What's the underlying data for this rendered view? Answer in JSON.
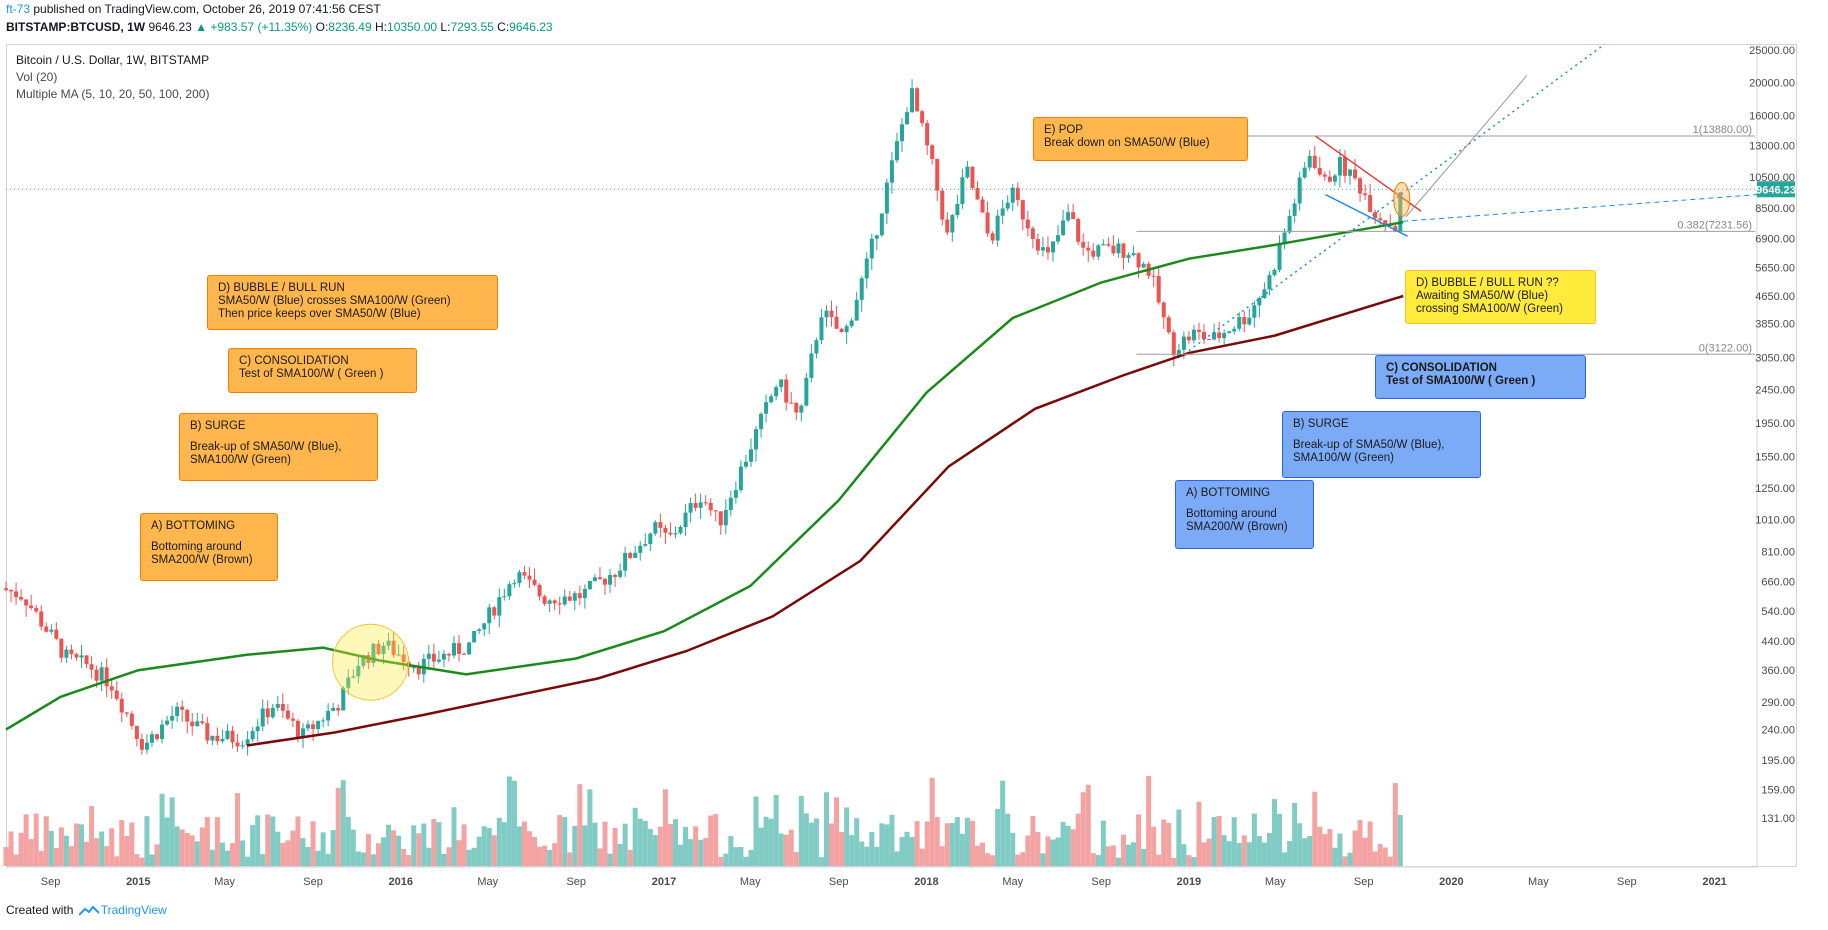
{
  "header": {
    "author": "ft-73",
    "published_text": " published on TradingView.com, October 26, 2019 07:41:56 CEST",
    "symbol": "BITSTAMP:BTCUSD, 1W",
    "price": "9646.23",
    "change": "▲ +983.57 (+11.35%)",
    "o_label": "O:",
    "o_value": "8236.49",
    "h_label": "H:",
    "h_value": "10350.00",
    "l_label": "L:",
    "l_value": "7293.55",
    "c_label": "C:",
    "c_value": "9646.23"
  },
  "legend": {
    "title": "Bitcoin / U.S. Dollar, 1W, BITSTAMP",
    "vol": "Vol (20)",
    "ma": "Multiple MA (5, 10, 20, 50, 100, 200)"
  },
  "footer": {
    "created_with": "Created with",
    "brand": "TradingView"
  },
  "colors": {
    "up": "#26a69a",
    "down": "#ef5350",
    "vol_up": "#80cbc4",
    "vol_down": "#f4a3a3",
    "sma100": "#1b8a1b",
    "sma200": "#7a0a0a",
    "fib": "#9e9e9e",
    "price_label_bg": "#26a69a",
    "wedge": "#e53935",
    "trend_blue": "#1e88e5"
  },
  "annotations": [
    {
      "id": "a-bottoming",
      "color": "orange",
      "title": "A) BOTTOMING",
      "body": "Bottoming around\nSMA200/W (Brown)"
    },
    {
      "id": "b-surge",
      "color": "orange",
      "title": "B) SURGE",
      "body": "Break-up of SMA50/W (Blue),\nSMA100/W (Green)"
    },
    {
      "id": "c-consolidation",
      "color": "orange",
      "title": "  C) CONSOLIDATION",
      "body": " Test of SMA100/W ( Green )"
    },
    {
      "id": "d-bubble",
      "color": "orange",
      "title": "D) BUBBLE / BULL RUN",
      "body": "SMA50/W (Blue) crosses SMA100/W (Green)\nThen price keeps over SMA50/W (Blue)"
    },
    {
      "id": "e-pop",
      "color": "orange",
      "title": "E) POP",
      "body": "Break down on SMA50/W (Blue)"
    },
    {
      "id": "a2-bottoming",
      "color": "blue",
      "title": "A) BOTTOMING",
      "body": "Bottoming around\nSMA200/W (Brown)"
    },
    {
      "id": "b2-surge",
      "color": "blue",
      "title": "B) SURGE",
      "body": "Break-up of SMA50/W (Blue),\nSMA100/W (Green)"
    },
    {
      "id": "c2-consolidation",
      "color": "blue",
      "title": "  C) CONSOLIDATION",
      "body": "Test of SMA100/W ( Green )"
    },
    {
      "id": "d2-bubble",
      "color": "yellow",
      "title": "D) BUBBLE / BULL RUN ??",
      "body": "Awaiting SMA50/W (Blue)\ncrossing SMA100/W (Green)"
    }
  ],
  "chart_data": {
    "type": "candlestick",
    "title": "Bitcoin / U.S. Dollar, 1W, BITSTAMP",
    "symbol": "BITSTAMP:BTCUSD",
    "interval": "1W",
    "y_scale": "log",
    "ylim": [
      110,
      25000
    ],
    "xlim": [
      "2014-07-01",
      "2021-03-01"
    ],
    "y_ticks": [
      25000,
      20000,
      16000,
      13000,
      10500,
      8500,
      6900,
      5650,
      4650,
      3850,
      3050,
      2450,
      1950,
      1550,
      1250,
      1010,
      810,
      660,
      540,
      440,
      360,
      290,
      240,
      195,
      159,
      131
    ],
    "y_tick_labels": [
      "25000.00",
      "20000.00",
      "16000.00",
      "13000.00",
      "10500.00",
      "8500.00",
      "6900.00",
      "5650.00",
      "4650.00",
      "3850.00",
      "3050.00",
      "2450.00",
      "1950.00",
      "1550.00",
      "1250.00",
      "1010.00",
      "810.00",
      "660.00",
      "540.00",
      "440.00",
      "360.00",
      "290.00",
      "240.00",
      "195.00",
      "159.00",
      "131.00"
    ],
    "x_ticks": [
      {
        "date": "2014-09-01",
        "label": "Sep"
      },
      {
        "date": "2015-01-01",
        "label": "2015"
      },
      {
        "date": "2015-05-01",
        "label": "May"
      },
      {
        "date": "2015-09-01",
        "label": "Sep"
      },
      {
        "date": "2016-01-01",
        "label": "2016"
      },
      {
        "date": "2016-05-01",
        "label": "May"
      },
      {
        "date": "2016-09-01",
        "label": "Sep"
      },
      {
        "date": "2017-01-01",
        "label": "2017"
      },
      {
        "date": "2017-05-01",
        "label": "May"
      },
      {
        "date": "2017-09-01",
        "label": "Sep"
      },
      {
        "date": "2018-01-01",
        "label": "2018"
      },
      {
        "date": "2018-05-01",
        "label": "May"
      },
      {
        "date": "2018-09-01",
        "label": "Sep"
      },
      {
        "date": "2019-01-01",
        "label": "2019"
      },
      {
        "date": "2019-05-01",
        "label": "May"
      },
      {
        "date": "2019-09-01",
        "label": "Sep"
      },
      {
        "date": "2020-01-01",
        "label": "2020"
      },
      {
        "date": "2020-05-01",
        "label": "May"
      },
      {
        "date": "2020-09-01",
        "label": "Sep"
      },
      {
        "date": "2021-01-01",
        "label": "2021"
      }
    ],
    "price_path": [
      {
        "date": "2014-07-01",
        "close": 630
      },
      {
        "date": "2014-08-01",
        "close": 600
      },
      {
        "date": "2014-09-01",
        "close": 480
      },
      {
        "date": "2014-10-01",
        "close": 390
      },
      {
        "date": "2014-11-01",
        "close": 370
      },
      {
        "date": "2014-12-01",
        "close": 330
      },
      {
        "date": "2015-01-15",
        "close": 215
      },
      {
        "date": "2015-03-01",
        "close": 270
      },
      {
        "date": "2015-04-15",
        "close": 230
      },
      {
        "date": "2015-06-01",
        "close": 225
      },
      {
        "date": "2015-07-15",
        "close": 285
      },
      {
        "date": "2015-08-25",
        "close": 230
      },
      {
        "date": "2015-10-15",
        "close": 290
      },
      {
        "date": "2015-11-10",
        "close": 380
      },
      {
        "date": "2015-12-15",
        "close": 430
      },
      {
        "date": "2016-02-01",
        "close": 370
      },
      {
        "date": "2016-04-15",
        "close": 430
      },
      {
        "date": "2016-06-15",
        "close": 700
      },
      {
        "date": "2016-07-25",
        "close": 590
      },
      {
        "date": "2016-09-15",
        "close": 600
      },
      {
        "date": "2016-11-01",
        "close": 710
      },
      {
        "date": "2016-12-25",
        "close": 950
      },
      {
        "date": "2017-01-15",
        "close": 880
      },
      {
        "date": "2017-03-01",
        "close": 1200
      },
      {
        "date": "2017-03-25",
        "close": 980
      },
      {
        "date": "2017-05-15",
        "close": 1800
      },
      {
        "date": "2017-06-15",
        "close": 2600
      },
      {
        "date": "2017-07-15",
        "close": 2000
      },
      {
        "date": "2017-08-15",
        "close": 4200
      },
      {
        "date": "2017-09-15",
        "close": 3500
      },
      {
        "date": "2017-10-20",
        "close": 6000
      },
      {
        "date": "2017-12-17",
        "close": 19000
      },
      {
        "date": "2018-01-15",
        "close": 11500
      },
      {
        "date": "2018-02-06",
        "close": 7000
      },
      {
        "date": "2018-03-05",
        "close": 11000
      },
      {
        "date": "2018-04-06",
        "close": 6800
      },
      {
        "date": "2018-05-05",
        "close": 9500
      },
      {
        "date": "2018-06-25",
        "close": 6000
      },
      {
        "date": "2018-07-25",
        "close": 8200
      },
      {
        "date": "2018-08-15",
        "close": 6300
      },
      {
        "date": "2018-10-15",
        "close": 6400
      },
      {
        "date": "2018-11-15",
        "close": 5500
      },
      {
        "date": "2018-12-15",
        "close": 3250
      },
      {
        "date": "2019-01-15",
        "close": 3600
      },
      {
        "date": "2019-02-10",
        "close": 3450
      },
      {
        "date": "2019-04-01",
        "close": 4100
      },
      {
        "date": "2019-05-01",
        "close": 5300
      },
      {
        "date": "2019-06-26",
        "close": 12500
      },
      {
        "date": "2019-07-15",
        "close": 10000
      },
      {
        "date": "2019-08-05",
        "close": 11500
      },
      {
        "date": "2019-09-01",
        "close": 10000
      },
      {
        "date": "2019-09-25",
        "close": 8200
      },
      {
        "date": "2019-10-22",
        "close": 7450
      },
      {
        "date": "2019-10-26",
        "close": 9646
      }
    ],
    "series": [
      {
        "name": "SMA100/W (Green)",
        "points": [
          {
            "date": "2014-07-01",
            "value": 240
          },
          {
            "date": "2014-09-15",
            "value": 300
          },
          {
            "date": "2015-01-01",
            "value": 360
          },
          {
            "date": "2015-06-01",
            "value": 400
          },
          {
            "date": "2015-09-15",
            "value": 420
          },
          {
            "date": "2015-12-01",
            "value": 385
          },
          {
            "date": "2016-04-01",
            "value": 350
          },
          {
            "date": "2016-09-01",
            "value": 390
          },
          {
            "date": "2017-01-01",
            "value": 470
          },
          {
            "date": "2017-05-01",
            "value": 640
          },
          {
            "date": "2017-09-01",
            "value": 1150
          },
          {
            "date": "2018-01-01",
            "value": 2400
          },
          {
            "date": "2018-05-01",
            "value": 4000
          },
          {
            "date": "2018-09-01",
            "value": 5100
          },
          {
            "date": "2019-01-01",
            "value": 6000
          },
          {
            "date": "2019-05-01",
            "value": 6600
          },
          {
            "date": "2019-10-26",
            "value": 7700
          }
        ]
      },
      {
        "name": "SMA200/W (Brown)",
        "points": [
          {
            "date": "2015-06-01",
            "value": 215
          },
          {
            "date": "2015-10-01",
            "value": 235
          },
          {
            "date": "2016-02-01",
            "value": 265
          },
          {
            "date": "2016-06-01",
            "value": 300
          },
          {
            "date": "2016-10-01",
            "value": 340
          },
          {
            "date": "2017-02-01",
            "value": 410
          },
          {
            "date": "2017-06-01",
            "value": 520
          },
          {
            "date": "2017-10-01",
            "value": 760
          },
          {
            "date": "2018-02-01",
            "value": 1450
          },
          {
            "date": "2018-06-01",
            "value": 2150
          },
          {
            "date": "2018-10-01",
            "value": 2700
          },
          {
            "date": "2019-01-01",
            "value": 3150
          },
          {
            "date": "2019-05-01",
            "value": 3550
          },
          {
            "date": "2019-10-26",
            "value": 4650
          }
        ]
      }
    ],
    "fib_levels": [
      {
        "label": "1(13880.00)",
        "value": 13880
      },
      {
        "label": "0.382(7231.56)",
        "value": 7231.56
      },
      {
        "label": "0(3122.00)",
        "value": 3122
      }
    ],
    "last_price": {
      "label": "9646.23",
      "value": 9646.23
    },
    "volume_ylim": [
      0,
      1
    ]
  }
}
